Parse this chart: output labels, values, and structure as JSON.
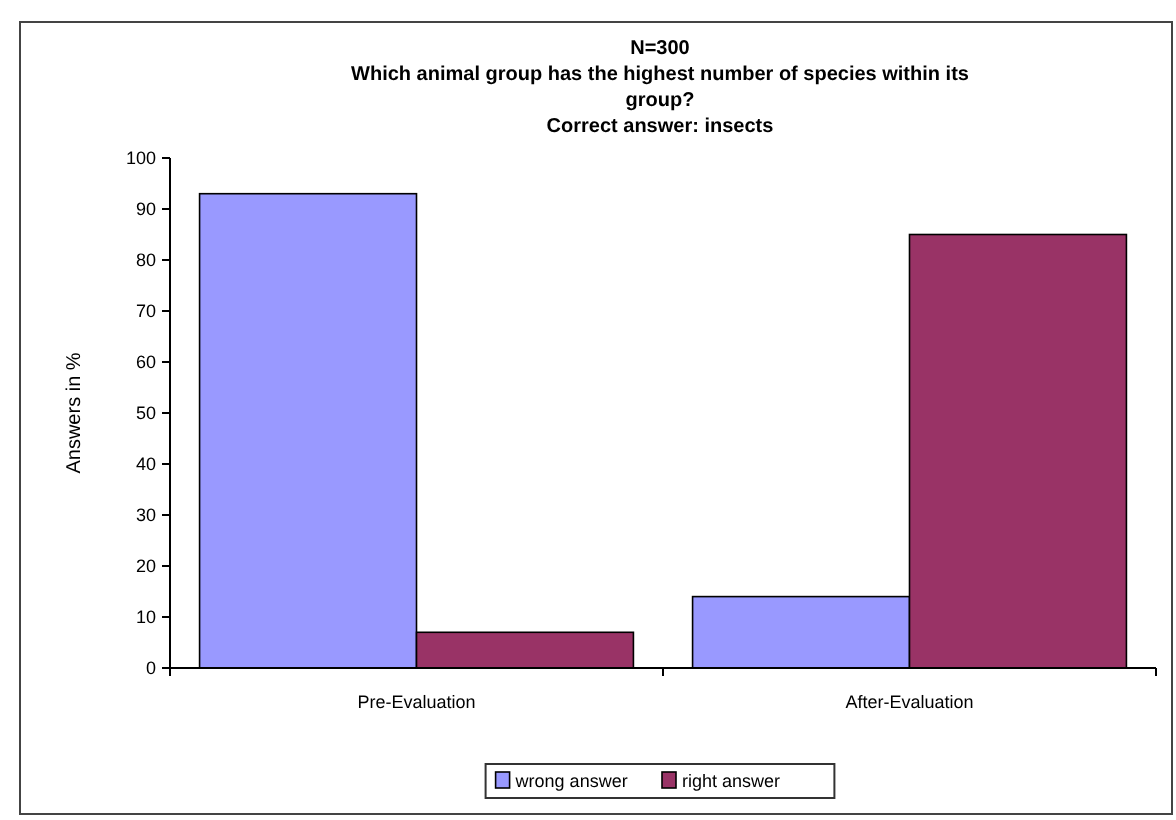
{
  "chart_data": {
    "type": "bar",
    "title": "N=300",
    "subtitle": "Which animal group has the highest number of species within its group?",
    "annotations": [
      "Correct answer: insects"
    ],
    "ylabel": "Answers in %",
    "categories": [
      "Pre-Evaluation",
      "After-Evaluation"
    ],
    "series": [
      {
        "name": "wrong answer",
        "color": "#9999ff",
        "values": [
          93,
          14
        ]
      },
      {
        "name": "right answer",
        "color": "#993366",
        "values": [
          7,
          85
        ]
      }
    ],
    "ylim": [
      0,
      100
    ],
    "yticks": [
      0,
      10,
      20,
      30,
      40,
      50,
      60,
      70,
      80,
      90,
      100
    ],
    "legend": "bottom",
    "grid": false
  }
}
